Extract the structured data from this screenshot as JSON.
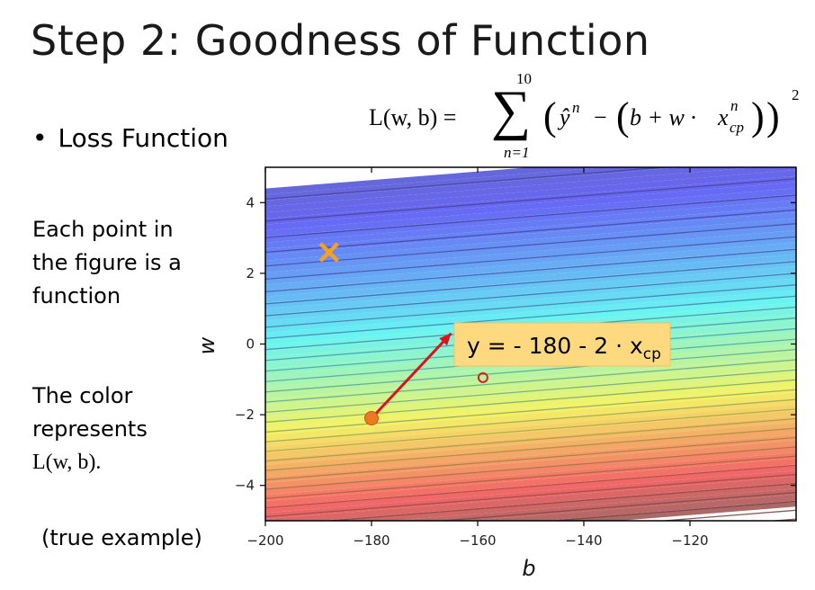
{
  "title": "Step 2: Goodness of Function",
  "bullet": "Loss Function",
  "bullet_symbol": "•",
  "formula": {
    "lhs": "L(w, b) =",
    "sum_upper": "10",
    "sum_lower": "n=1",
    "sigma": "∑",
    "open_paren": "(",
    "yhat": "ŷ",
    "yhat_sup": "n",
    "minus": "−",
    "inner_open": "(",
    "b_plus_w": "b + w ·",
    "x": "x",
    "x_sup": "n",
    "x_sub": "cp",
    "inner_close": ")",
    "close_paren": ")",
    "power": "2"
  },
  "side_text": {
    "para1": [
      "Each point in",
      "the figure is a",
      "function"
    ],
    "para2": [
      "The color",
      "represents"
    ],
    "para2_math": "L(w, b).",
    "caption": "(true example)"
  },
  "colors": {
    "annotation_bg": "#ffd97f",
    "arrow": "#e0101a",
    "marker_x": "#f5a020",
    "point": "#f07820",
    "target_circle": "#d62020"
  },
  "chart_data": {
    "type": "contour",
    "xlabel": "b",
    "ylabel": "w",
    "xlim": [
      -200,
      -100
    ],
    "ylim": [
      -5,
      5
    ],
    "xticks": [
      -200,
      -180,
      -160,
      -140,
      -120
    ],
    "yticks": [
      4,
      2,
      0,
      -2,
      -4
    ],
    "xtick_labels": [
      "−200",
      "−180",
      "−160",
      "−140",
      "−120"
    ],
    "ytick_labels": [
      "4",
      "2",
      "0",
      "−2",
      "−4"
    ],
    "colormap": "jet",
    "color_low": "low loss = blue (top)",
    "color_high": "high loss = red (bottom)",
    "markers": [
      {
        "name": "x-marker",
        "b": -188,
        "w": 2.6,
        "symbol": "×"
      },
      {
        "name": "orange-point",
        "b": -180,
        "w": -2.1
      },
      {
        "name": "red-circle",
        "b": -159,
        "w": -0.95
      }
    ],
    "arrow": {
      "from_b": -180,
      "from_w": -2.1,
      "to_b": -165,
      "to_w": 0.3
    },
    "annotation": {
      "text_main": "y = - 180 - 2 · x",
      "text_sub": "cp"
    }
  }
}
